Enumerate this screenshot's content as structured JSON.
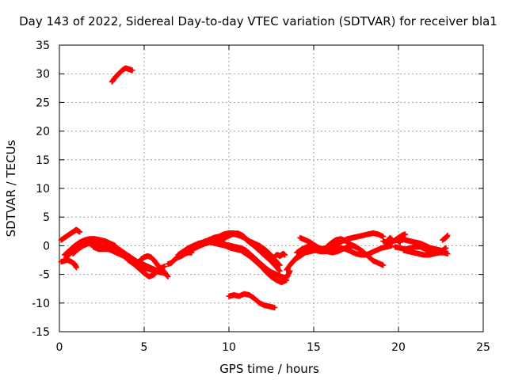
{
  "chart_data": {
    "type": "scatter",
    "title": "Day 143 of 2022, Sidereal Day-to-day VTEC variation (SDTVAR) for receiver bla1",
    "xlabel": "GPS time / hours",
    "ylabel": "SDTVAR / TECUs",
    "xlim": [
      0,
      25
    ],
    "ylim": [
      -15,
      35
    ],
    "xticks": [
      0,
      5,
      10,
      15,
      20,
      25
    ],
    "yticks": [
      -15,
      -10,
      -5,
      0,
      5,
      10,
      15,
      20,
      25,
      30,
      35
    ],
    "grid": true,
    "marker": "plus",
    "color": "#ff0000",
    "series": [
      {
        "name": "t1",
        "x": [
          0.1,
          0.3,
          0.5,
          0.7,
          0.9,
          1.0,
          1.2
        ],
        "y": [
          1.0,
          1.4,
          1.8,
          2.2,
          2.6,
          2.8,
          2.4
        ]
      },
      {
        "name": "t2",
        "x": [
          0.1,
          0.3,
          0.5,
          0.7,
          0.9,
          1.0
        ],
        "y": [
          -2.8,
          -2.6,
          -2.5,
          -2.8,
          -3.2,
          -3.8
        ]
      },
      {
        "name": "t3",
        "x": [
          0.3,
          0.6,
          0.9,
          1.2,
          1.5,
          1.8,
          2.1,
          2.4,
          2.7,
          3.0,
          3.3
        ],
        "y": [
          -1.6,
          -0.8,
          0.0,
          0.6,
          1.0,
          1.2,
          1.2,
          1.0,
          0.8,
          0.4,
          0.0
        ]
      },
      {
        "name": "t4",
        "x": [
          0.4,
          0.7,
          1.0,
          1.3,
          1.6,
          1.9,
          2.2,
          2.5,
          2.8,
          3.1,
          3.4,
          3.7,
          4.0,
          4.3,
          4.6,
          4.9,
          5.2,
          5.5,
          5.8,
          6.1
        ],
        "y": [
          -2.0,
          -1.2,
          -0.6,
          0.2,
          0.6,
          0.8,
          0.9,
          0.8,
          0.4,
          0.0,
          -0.4,
          -1.0,
          -1.6,
          -2.2,
          -2.8,
          -3.2,
          -3.6,
          -4.0,
          -4.4,
          -4.6
        ]
      },
      {
        "name": "t5",
        "x": [
          0.8,
          1.1,
          1.4,
          1.7,
          2.0,
          2.3,
          2.6,
          2.9,
          3.2,
          3.5,
          3.8,
          4.1,
          4.4,
          4.7,
          5.0,
          5.3,
          5.6,
          5.9,
          6.2
        ],
        "y": [
          -1.4,
          -0.6,
          0.0,
          0.4,
          0.3,
          0.0,
          -0.3,
          -0.6,
          -1.0,
          -1.4,
          -1.8,
          -2.6,
          -3.2,
          -3.6,
          -3.9,
          -4.1,
          -4.4,
          -4.6,
          -4.8
        ]
      },
      {
        "name": "t6",
        "x": [
          2.0,
          2.3,
          2.6,
          2.9,
          3.2,
          3.5,
          3.8,
          4.1,
          4.4,
          4.7,
          5.0,
          5.3,
          5.6,
          5.9,
          6.2
        ],
        "y": [
          -0.2,
          -0.6,
          -0.6,
          -0.6,
          -0.8,
          -1.2,
          -1.6,
          -2.4,
          -3.2,
          -4.0,
          -4.8,
          -5.4,
          -5.0,
          -4.0,
          -3.6
        ]
      },
      {
        "name": "t7",
        "x": [
          4.8,
          5.0,
          5.2,
          5.4,
          5.6,
          5.8,
          6.0,
          6.2,
          6.4
        ],
        "y": [
          -2.4,
          -2.0,
          -1.8,
          -2.0,
          -2.6,
          -3.4,
          -4.0,
          -4.6,
          -5.4
        ]
      },
      {
        "name": "t8",
        "x": [
          6.4,
          6.6,
          6.8,
          7.0,
          7.2,
          7.4,
          7.6,
          7.8
        ],
        "y": [
          -3.2,
          -3.0,
          -2.4,
          -2.0,
          -1.8,
          -1.4,
          -1.2,
          -1.2
        ]
      },
      {
        "name": "t9",
        "x": [
          7.0,
          7.3,
          7.6,
          7.9,
          8.2,
          8.5,
          8.8,
          9.1,
          9.4,
          9.7,
          10.0,
          10.3,
          10.6,
          10.9,
          11.2,
          11.5,
          11.8,
          12.1,
          12.4,
          12.7,
          13.0
        ],
        "y": [
          -1.6,
          -1.0,
          -0.4,
          0.0,
          0.4,
          0.6,
          1.0,
          1.4,
          1.6,
          2.0,
          2.2,
          2.2,
          2.0,
          1.4,
          0.6,
          0.0,
          -0.8,
          -1.6,
          -2.4,
          -3.4,
          -4.4
        ]
      },
      {
        "name": "t10",
        "x": [
          7.4,
          7.7,
          8.0,
          8.3,
          8.6,
          8.9,
          9.2,
          9.5,
          9.8,
          10.1,
          10.4,
          10.7,
          11.0,
          11.3,
          11.6,
          11.9,
          12.2,
          12.5,
          12.8,
          13.1,
          13.4
        ],
        "y": [
          -1.4,
          -1.0,
          -0.4,
          0.0,
          0.4,
          0.6,
          0.4,
          0.2,
          0.0,
          -0.4,
          -0.6,
          -0.8,
          -1.4,
          -2.0,
          -2.8,
          -3.6,
          -4.6,
          -5.4,
          -6.0,
          -6.4,
          -6.0
        ]
      },
      {
        "name": "t11",
        "x": [
          8.0,
          8.3,
          8.6,
          8.9,
          9.2,
          9.5,
          9.8,
          10.1,
          10.4,
          10.7,
          11.0,
          11.3,
          11.6,
          11.9,
          12.2,
          12.5,
          12.8,
          13.1,
          13.4,
          13.6
        ],
        "y": [
          -0.4,
          0.4,
          0.8,
          1.0,
          0.8,
          0.6,
          0.2,
          0.0,
          -0.2,
          -0.4,
          -0.8,
          -1.6,
          -2.4,
          -3.2,
          -4.0,
          -4.6,
          -5.0,
          -5.4,
          -5.6,
          -4.4
        ]
      },
      {
        "name": "t12",
        "x": [
          10.0,
          10.3,
          10.6,
          10.9,
          11.2,
          11.5,
          11.8,
          12.1,
          12.4,
          12.7,
          13.0
        ],
        "y": [
          2.0,
          2.0,
          1.8,
          1.4,
          0.8,
          0.4,
          0.0,
          -0.6,
          -1.4,
          -2.4,
          -3.4
        ]
      },
      {
        "name": "t13",
        "x": [
          13.4,
          13.7,
          14.0,
          14.3,
          14.6,
          14.9,
          15.2,
          15.5,
          15.8,
          16.1,
          16.4,
          16.7,
          17.0,
          17.3,
          17.6,
          17.9,
          18.2,
          18.5,
          18.8,
          19.1
        ],
        "y": [
          -4.2,
          -3.0,
          -2.0,
          -1.4,
          -1.0,
          -0.8,
          -0.6,
          -0.6,
          -0.4,
          0.0,
          0.4,
          0.8,
          1.2,
          1.4,
          1.6,
          1.8,
          2.0,
          2.2,
          2.0,
          1.6
        ]
      },
      {
        "name": "t14",
        "x": [
          13.6,
          13.9,
          14.2,
          14.5,
          14.8,
          15.1,
          15.4,
          15.7,
          16.0,
          16.3,
          16.6,
          16.9,
          17.2,
          17.5,
          17.8,
          18.1,
          18.4,
          18.7,
          19.0,
          19.3,
          19.6
        ],
        "y": [
          -3.4,
          -2.4,
          -1.8,
          -1.2,
          -1.0,
          -0.8,
          -1.0,
          -1.0,
          -0.8,
          -0.6,
          -0.4,
          -0.6,
          -1.0,
          -1.4,
          -1.6,
          -1.6,
          -1.2,
          -0.8,
          -0.4,
          -0.2,
          0.0
        ]
      },
      {
        "name": "t15",
        "x": [
          14.0,
          14.3,
          14.6,
          14.9,
          15.2,
          15.5,
          15.8,
          16.1,
          16.4,
          16.7,
          17.0,
          17.3,
          17.6,
          17.9,
          18.2,
          18.5,
          18.8,
          19.1
        ],
        "y": [
          -1.2,
          -0.6,
          -0.2,
          0.0,
          -0.2,
          -0.6,
          -1.0,
          -1.2,
          -1.0,
          -0.6,
          -0.2,
          0.0,
          -0.4,
          -1.0,
          -1.8,
          -2.6,
          -3.0,
          -3.4
        ]
      },
      {
        "name": "t16",
        "x": [
          14.2,
          14.5,
          14.8,
          15.1,
          15.4,
          15.7,
          16.0,
          16.3,
          16.6,
          16.9,
          17.2,
          17.5
        ],
        "y": [
          1.4,
          1.0,
          0.6,
          0.0,
          -0.6,
          -0.4,
          0.4,
          1.0,
          1.2,
          0.8,
          0.2,
          -0.2
        ]
      },
      {
        "name": "t17",
        "x": [
          12.7,
          12.8,
          12.9,
          13.0,
          13.1,
          13.2,
          13.3
        ],
        "y": [
          -2.0,
          -1.6,
          -1.6,
          -1.8,
          -1.6,
          -1.4,
          -1.6
        ]
      },
      {
        "name": "t18",
        "x": [
          19.3,
          19.6,
          19.9,
          20.2,
          20.4
        ],
        "y": [
          0.0,
          0.6,
          1.2,
          1.8,
          2.0
        ]
      },
      {
        "name": "t19",
        "x": [
          19.8,
          20.1,
          20.4,
          20.7,
          21.0,
          21.3,
          21.6,
          21.9,
          22.2,
          22.5,
          22.8
        ],
        "y": [
          -0.2,
          -0.4,
          -0.6,
          -0.4,
          -0.2,
          -0.2,
          -0.6,
          -1.0,
          -1.2,
          -1.0,
          -0.4
        ]
      },
      {
        "name": "t20",
        "x": [
          20.1,
          20.4,
          20.7,
          21.0,
          21.3,
          21.6,
          21.9,
          22.2,
          22.5,
          22.8
        ],
        "y": [
          1.2,
          1.0,
          0.8,
          0.6,
          0.4,
          0.0,
          -0.4,
          -0.6,
          -0.8,
          -1.0
        ]
      },
      {
        "name": "t21",
        "x": [
          20.3,
          20.6,
          20.9,
          21.2,
          21.5,
          21.8,
          22.1,
          22.4,
          22.7,
          22.9
        ],
        "y": [
          -0.8,
          -1.0,
          -1.2,
          -1.4,
          -1.6,
          -1.6,
          -1.4,
          -1.2,
          -1.2,
          -1.4
        ]
      },
      {
        "name": "t22",
        "x": [
          19.1,
          19.3,
          19.5,
          19.7,
          19.9,
          20.1
        ],
        "y": [
          0.8,
          0.6,
          1.4,
          0.8,
          1.0,
          0.6
        ]
      },
      {
        "name": "t23",
        "x": [
          22.6,
          22.8,
          22.9
        ],
        "y": [
          1.0,
          1.4,
          1.8
        ]
      },
      {
        "name": "t24",
        "x": [
          9.3,
          9.6,
          9.9,
          10.2,
          10.5,
          10.8,
          11.1,
          11.4,
          11.7,
          12.0,
          12.3,
          12.6,
          12.8
        ],
        "y": [
          0.6,
          1.0,
          1.6,
          2.0,
          2.2,
          1.8,
          1.0,
          0.2,
          -0.6,
          -1.4,
          -2.2,
          -3.0,
          -3.6
        ]
      },
      {
        "name": "t25",
        "x": [
          3.1,
          3.3,
          3.5,
          3.7,
          3.9,
          4.1,
          4.3
        ],
        "y": [
          28.6,
          29.4,
          30.0,
          30.6,
          31.0,
          30.8,
          30.6
        ]
      },
      {
        "name": "t26",
        "x": [
          10.0,
          10.3,
          10.6,
          10.9,
          11.2,
          11.5,
          11.8,
          12.1,
          12.4,
          12.7
        ],
        "y": [
          -8.8,
          -8.6,
          -8.8,
          -8.4,
          -8.6,
          -9.2,
          -10.0,
          -10.4,
          -10.6,
          -10.8
        ]
      }
    ]
  }
}
